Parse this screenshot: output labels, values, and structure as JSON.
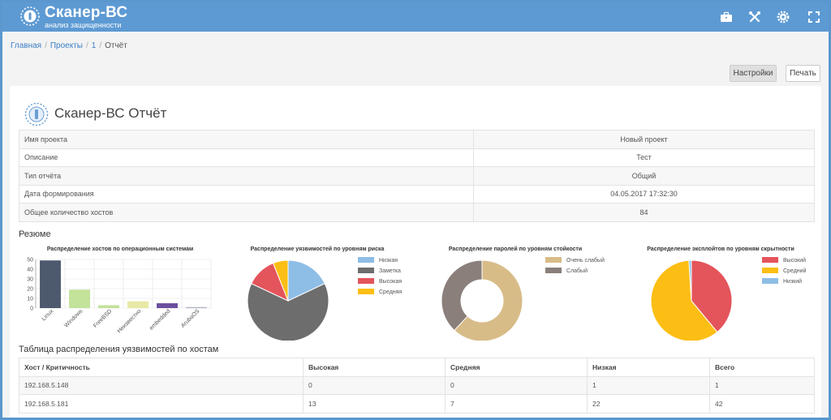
{
  "header": {
    "brand": "Сканер-ВС",
    "subtitle": "анализ защищенности"
  },
  "breadcrumb": {
    "home": "Главная",
    "projects": "Проекты",
    "project_id": "1",
    "current": "Отчёт",
    "separator": "/"
  },
  "toolbar": {
    "settings_label": "Настройки",
    "print_label": "Печать"
  },
  "report": {
    "title": "Сканер-ВС Отчёт",
    "info": [
      {
        "label": "Имя проекта",
        "value": "Новый проект"
      },
      {
        "label": "Описание",
        "value": "Тест"
      },
      {
        "label": "Тип отчёта",
        "value": "Общий"
      },
      {
        "label": "Дата формирования",
        "value": "04.05.2017 17:32:30"
      },
      {
        "label": "Общее количество хостов",
        "value": "84"
      }
    ],
    "resume_title": "Резюме",
    "hosts_table_title": "Таблица распределения уязвимостей по хостам",
    "hosts_table": {
      "columns": [
        "Хост / Критичность",
        "Высокая",
        "Средняя",
        "Низкая",
        "Всего"
      ],
      "rows": [
        [
          "192.168.5.148",
          "0",
          "0",
          "1",
          "1"
        ],
        [
          "192.168.5.181",
          "13",
          "7",
          "22",
          "42"
        ]
      ]
    }
  },
  "chart_data": [
    {
      "type": "bar",
      "title": "Распределение хостов по операционным системам",
      "categories": [
        "Linux",
        "Windows",
        "FreeBSD",
        "Неизвестно",
        "embedded",
        "ArubaOS"
      ],
      "values": [
        49,
        19,
        3,
        7,
        5,
        1
      ],
      "colors": [
        "#4d5a6e",
        "#c3e29a",
        "#c3e29a",
        "#e7e9a6",
        "#6b4f9e",
        "#aab0c4"
      ],
      "ylim": [
        0,
        50
      ],
      "yticks": [
        "0",
        "10",
        "20",
        "30",
        "40",
        "50"
      ],
      "grid": true
    },
    {
      "type": "pie",
      "title": "Распределение уязвимостей по уровням риска",
      "labels": [
        "Низкая",
        "Заметка",
        "Высокая",
        "Средняя"
      ],
      "values": [
        18,
        64,
        12,
        6
      ],
      "colors": [
        "#8ebde6",
        "#6d6d6d",
        "#e4545b",
        "#fcbe14"
      ],
      "legend": "right"
    },
    {
      "type": "pie",
      "title": "Распределение паролей по уровням стойкости",
      "labels": [
        "Очень слабый",
        "Слабый"
      ],
      "values": [
        62,
        38
      ],
      "colors": [
        "#d8bc88",
        "#8a7f7a"
      ],
      "donut": true,
      "legend": "right"
    },
    {
      "type": "pie",
      "title": "Распределение эксплойтов по уровням скрытности",
      "labels": [
        "Высокий",
        "Средний",
        "Низкий"
      ],
      "values": [
        39,
        60,
        1
      ],
      "colors": [
        "#e4545b",
        "#fcbe14",
        "#8ebde6"
      ],
      "legend": "right"
    }
  ]
}
